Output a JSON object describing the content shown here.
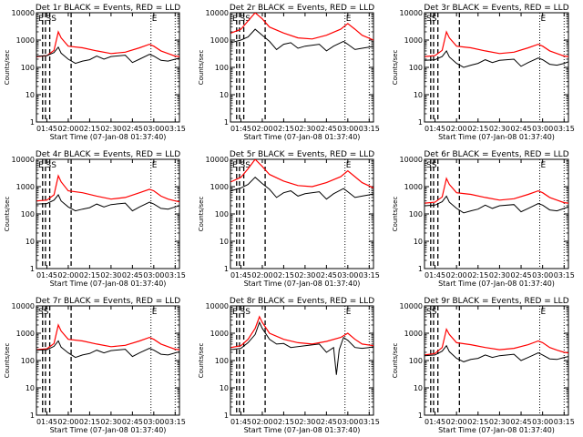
{
  "colors": {
    "events": "#000000",
    "lld": "#ff0000",
    "background": "#ffffff",
    "axis": "#000000"
  },
  "chart_data": {
    "type": "line",
    "shared": {
      "title_suffix": "BLACK = Events, RED = LLD",
      "xlabel": "Start Time (07-Jan-08 01:37:40)",
      "ylabel": "Counts/sec",
      "xlim": [
        "01:37:40",
        "03:18:00"
      ],
      "ylim": [
        1,
        10000
      ],
      "yscale": "log",
      "x_ticks": [
        "01:45",
        "02:00",
        "02:15",
        "02:30",
        "02:45",
        "03:00",
        "03:15"
      ],
      "y_ticks": [
        "1",
        "10",
        "100",
        "1000",
        "10000"
      ],
      "markers": {
        "dashed_x": [
          "01:42",
          "01:44",
          "01:47",
          "02:02"
        ],
        "dotted_x": [
          "02:58",
          "03:15"
        ]
      },
      "marker_letters": {
        "start": "ES",
        "end": "E"
      }
    },
    "panels": [
      {
        "title": "Det 1r",
        "letters": "E SS",
        "lld_x": [
          "01:38",
          "01:45",
          "01:50",
          "01:53",
          "01:55",
          "02:00",
          "02:10",
          "02:20",
          "02:30",
          "02:40",
          "02:50",
          "02:57",
          "03:00",
          "03:05",
          "03:10",
          "03:15",
          "03:18"
        ],
        "lld_y": [
          250,
          270,
          420,
          2000,
          1200,
          600,
          520,
          400,
          320,
          360,
          520,
          700,
          600,
          400,
          320,
          260,
          250
        ],
        "events_x": [
          "01:38",
          "01:45",
          "01:50",
          "01:53",
          "01:55",
          "02:00",
          "02:05",
          "02:10",
          "02:15",
          "02:20",
          "02:25",
          "02:30",
          "02:40",
          "02:45",
          "02:50",
          "02:57",
          "03:00",
          "03:05",
          "03:10",
          "03:15",
          "03:18"
        ],
        "events_y": [
          260,
          270,
          350,
          550,
          330,
          200,
          140,
          170,
          190,
          260,
          200,
          250,
          280,
          150,
          200,
          300,
          260,
          180,
          170,
          200,
          220
        ]
      },
      {
        "title": "Det 2r",
        "letters": "E SS",
        "lld_x": [
          "01:38",
          "01:45",
          "01:50",
          "01:55",
          "02:00",
          "02:05",
          "02:15",
          "02:25",
          "02:35",
          "02:45",
          "02:55",
          "03:00",
          "03:05",
          "03:10",
          "03:18"
        ],
        "lld_y": [
          1800,
          2500,
          5000,
          10000,
          6000,
          3000,
          1800,
          1200,
          1100,
          1500,
          2500,
          4000,
          2500,
          1500,
          1000
        ],
        "events_x": [
          "01:38",
          "01:45",
          "01:50",
          "01:55",
          "02:00",
          "02:05",
          "02:10",
          "02:15",
          "02:20",
          "02:25",
          "02:30",
          "02:40",
          "02:45",
          "02:50",
          "02:57",
          "03:00",
          "03:05",
          "03:10",
          "03:15",
          "03:18"
        ],
        "events_y": [
          800,
          1000,
          1300,
          2500,
          1500,
          900,
          450,
          700,
          800,
          500,
          600,
          700,
          400,
          600,
          900,
          700,
          450,
          500,
          550,
          600
        ]
      },
      {
        "title": "Det 3r",
        "letters": "SS",
        "lld_x": [
          "01:38",
          "01:45",
          "01:50",
          "01:53",
          "01:55",
          "02:00",
          "02:10",
          "02:20",
          "02:30",
          "02:40",
          "02:50",
          "02:57",
          "03:00",
          "03:05",
          "03:10",
          "03:15",
          "03:18"
        ],
        "lld_y": [
          250,
          270,
          420,
          2000,
          1200,
          600,
          520,
          400,
          320,
          360,
          520,
          700,
          600,
          400,
          320,
          260,
          250
        ],
        "events_x": [
          "01:38",
          "01:45",
          "01:50",
          "01:53",
          "01:55",
          "02:00",
          "02:05",
          "02:10",
          "02:15",
          "02:20",
          "02:25",
          "02:30",
          "02:40",
          "02:45",
          "02:50",
          "02:57",
          "03:00",
          "03:05",
          "03:10",
          "03:15",
          "03:18"
        ],
        "events_y": [
          180,
          190,
          250,
          400,
          240,
          140,
          100,
          120,
          140,
          190,
          150,
          180,
          200,
          110,
          150,
          220,
          190,
          130,
          120,
          140,
          160
        ]
      },
      {
        "title": "Det 4r",
        "letters": "E SS",
        "lld_x": [
          "01:38",
          "01:45",
          "01:50",
          "01:53",
          "01:55",
          "02:00",
          "02:10",
          "02:20",
          "02:30",
          "02:40",
          "02:50",
          "02:57",
          "03:00",
          "03:05",
          "03:10",
          "03:15",
          "03:18"
        ],
        "lld_y": [
          300,
          320,
          500,
          2500,
          1500,
          700,
          600,
          450,
          350,
          400,
          600,
          800,
          700,
          450,
          350,
          300,
          280
        ],
        "events_x": [
          "01:38",
          "01:45",
          "01:50",
          "01:53",
          "01:55",
          "02:00",
          "02:05",
          "02:10",
          "02:15",
          "02:20",
          "02:25",
          "02:30",
          "02:40",
          "02:45",
          "02:50",
          "02:57",
          "03:00",
          "03:05",
          "03:10",
          "03:15",
          "03:18"
        ],
        "events_y": [
          230,
          240,
          320,
          500,
          300,
          180,
          130,
          150,
          170,
          230,
          180,
          220,
          250,
          130,
          180,
          270,
          230,
          160,
          150,
          180,
          200
        ]
      },
      {
        "title": "Det 5r",
        "letters": "E SS",
        "lld_x": [
          "01:38",
          "01:45",
          "01:50",
          "01:55",
          "02:00",
          "02:05",
          "02:15",
          "02:25",
          "02:35",
          "02:45",
          "02:55",
          "03:00",
          "03:05",
          "03:10",
          "03:18"
        ],
        "lld_y": [
          1500,
          2200,
          4500,
          10000,
          5500,
          2800,
          1600,
          1100,
          1000,
          1400,
          2300,
          3800,
          2300,
          1400,
          900
        ],
        "events_x": [
          "01:38",
          "01:45",
          "01:50",
          "01:55",
          "02:00",
          "02:05",
          "02:10",
          "02:15",
          "02:20",
          "02:25",
          "02:30",
          "02:40",
          "02:45",
          "02:50",
          "02:57",
          "03:00",
          "03:05",
          "03:10",
          "03:15",
          "03:18"
        ],
        "events_y": [
          700,
          900,
          1200,
          2200,
          1300,
          800,
          400,
          600,
          700,
          450,
          550,
          650,
          350,
          550,
          850,
          650,
          400,
          450,
          500,
          550
        ]
      },
      {
        "title": "Det 6r",
        "letters": "SS",
        "lld_x": [
          "01:38",
          "01:45",
          "01:50",
          "01:53",
          "01:55",
          "02:00",
          "02:10",
          "02:20",
          "02:30",
          "02:40",
          "02:50",
          "02:57",
          "03:00",
          "03:05",
          "03:10",
          "03:15",
          "03:18"
        ],
        "lld_y": [
          250,
          270,
          420,
          2000,
          1200,
          600,
          520,
          400,
          320,
          360,
          520,
          700,
          600,
          400,
          320,
          260,
          250
        ],
        "events_x": [
          "01:38",
          "01:45",
          "01:50",
          "01:53",
          "01:55",
          "02:00",
          "02:05",
          "02:10",
          "02:15",
          "02:20",
          "02:25",
          "02:30",
          "02:40",
          "02:45",
          "02:50",
          "02:57",
          "03:00",
          "03:05",
          "03:10",
          "03:15",
          "03:18"
        ],
        "events_y": [
          200,
          210,
          280,
          450,
          270,
          160,
          110,
          130,
          150,
          210,
          160,
          200,
          220,
          120,
          160,
          240,
          210,
          140,
          130,
          160,
          180
        ]
      },
      {
        "title": "Det 7r",
        "letters": "SS",
        "lld_x": [
          "01:38",
          "01:45",
          "01:50",
          "01:53",
          "01:55",
          "02:00",
          "02:10",
          "02:20",
          "02:30",
          "02:40",
          "02:50",
          "02:57",
          "03:00",
          "03:05",
          "03:10",
          "03:15",
          "03:18"
        ],
        "lld_y": [
          250,
          270,
          420,
          2000,
          1200,
          600,
          520,
          400,
          320,
          360,
          520,
          700,
          600,
          400,
          320,
          260,
          250
        ],
        "events_x": [
          "01:38",
          "01:45",
          "01:50",
          "01:53",
          "01:55",
          "02:00",
          "02:05",
          "02:10",
          "02:15",
          "02:20",
          "02:25",
          "02:30",
          "02:40",
          "02:45",
          "02:50",
          "02:57",
          "03:00",
          "03:05",
          "03:10",
          "03:15",
          "03:18"
        ],
        "events_y": [
          240,
          250,
          330,
          520,
          310,
          190,
          130,
          160,
          180,
          240,
          190,
          230,
          260,
          140,
          190,
          280,
          240,
          170,
          160,
          190,
          210
        ]
      },
      {
        "title": "Det 8r",
        "letters": "E SS",
        "lld_x": [
          "01:38",
          "01:45",
          "01:50",
          "01:55",
          "01:58",
          "02:00",
          "02:05",
          "02:15",
          "02:25",
          "02:35",
          "02:45",
          "02:55",
          "03:00",
          "03:05",
          "03:10",
          "03:18"
        ],
        "lld_y": [
          300,
          350,
          600,
          1500,
          4000,
          2500,
          1000,
          600,
          450,
          400,
          500,
          700,
          1000,
          600,
          400,
          350
        ],
        "events_x": [
          "01:38",
          "01:45",
          "01:50",
          "01:55",
          "01:58",
          "02:00",
          "02:05",
          "02:10",
          "02:15",
          "02:20",
          "02:30",
          "02:40",
          "02:45",
          "02:50",
          "02:52",
          "02:54",
          "02:57",
          "03:00",
          "03:05",
          "03:10",
          "03:15",
          "03:18"
        ],
        "events_y": [
          250,
          280,
          450,
          900,
          2500,
          1500,
          600,
          400,
          420,
          300,
          350,
          400,
          200,
          300,
          30,
          250,
          700,
          550,
          300,
          280,
          300,
          320
        ]
      },
      {
        "title": "Det 9r",
        "letters": "SS",
        "lld_x": [
          "01:38",
          "01:45",
          "01:50",
          "01:53",
          "01:55",
          "02:00",
          "02:10",
          "02:20",
          "02:30",
          "02:40",
          "02:50",
          "02:57",
          "03:00",
          "03:05",
          "03:10",
          "03:15",
          "03:18"
        ],
        "lld_y": [
          160,
          180,
          300,
          1400,
          900,
          450,
          380,
          300,
          250,
          280,
          380,
          520,
          450,
          300,
          240,
          200,
          190
        ],
        "events_x": [
          "01:38",
          "01:45",
          "01:50",
          "01:53",
          "01:55",
          "02:00",
          "02:05",
          "02:10",
          "02:15",
          "02:20",
          "02:25",
          "02:30",
          "02:40",
          "02:45",
          "02:50",
          "02:57",
          "03:00",
          "03:05",
          "03:10",
          "03:15",
          "03:18"
        ],
        "events_y": [
          150,
          160,
          220,
          350,
          210,
          120,
          90,
          110,
          120,
          160,
          130,
          150,
          170,
          100,
          130,
          190,
          160,
          115,
          110,
          130,
          140
        ]
      }
    ]
  }
}
